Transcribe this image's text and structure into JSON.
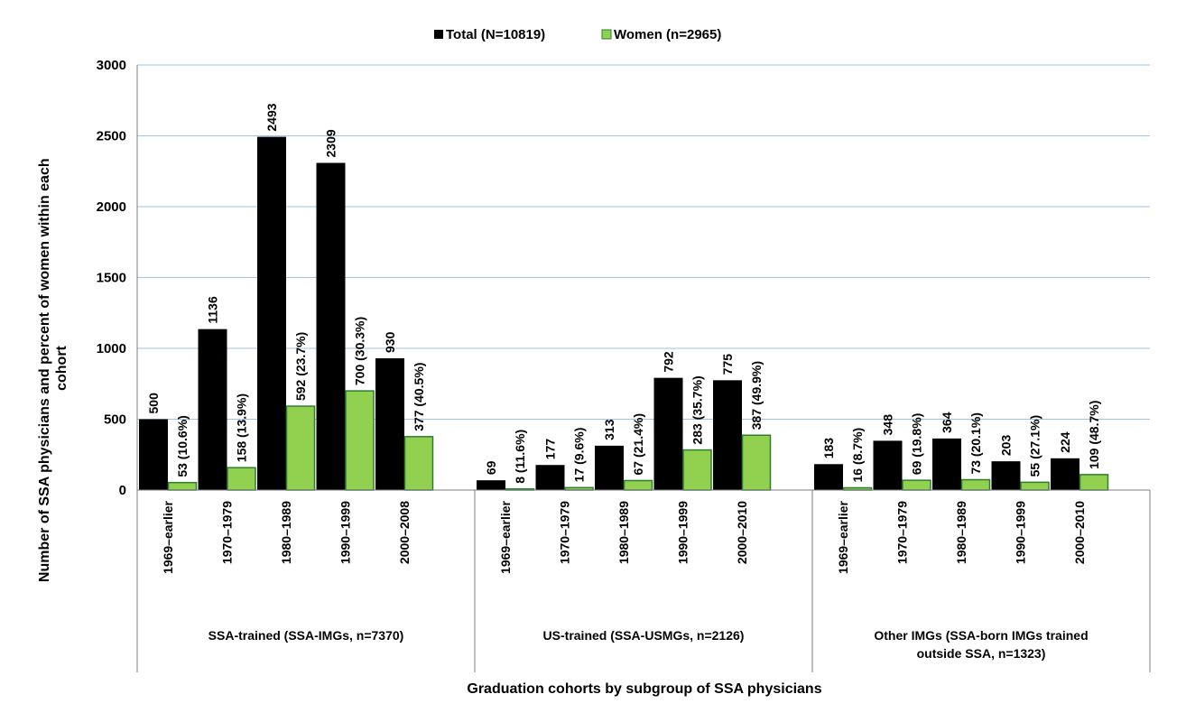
{
  "chart_data": {
    "type": "bar",
    "ylabel": "Number of SSA physicians and percent of women within each cohort",
    "ylabel_lines": [
      "Number of SSA physicians and percent of women within each",
      "cohort"
    ],
    "xlabel": "Graduation cohorts by subgroup of SSA physicians",
    "ylim": [
      0,
      3000
    ],
    "yticks": [
      "0",
      "500",
      "1000",
      "1500",
      "2000",
      "2500",
      "3000"
    ],
    "grid": true,
    "legend_position": "top-center",
    "colors": {
      "total": "#000000",
      "women": "#92d050",
      "women_edge": "#2e7d32",
      "grid": "#9dc3e6",
      "axis": "#7f7f7f"
    },
    "series": [
      {
        "name": "Total (N=10819)",
        "key": "total"
      },
      {
        "name": "Women (n=2965)",
        "key": "women"
      }
    ],
    "groups": [
      {
        "label": "SSA-trained (SSA-IMGs, n=7370)",
        "label_lines": [
          "SSA-trained (SSA-IMGs, n=7370)"
        ],
        "cohorts": [
          {
            "label": "1969–earlier",
            "total": 500,
            "total_label": "500",
            "women": 53,
            "women_label": "53 (10.6%)"
          },
          {
            "label": "1970–1979",
            "total": 1136,
            "total_label": "1136",
            "women": 158,
            "women_label": "158 (13.9%)"
          },
          {
            "label": "1980–1989",
            "total": 2493,
            "total_label": "2493",
            "women": 592,
            "women_label": "592 (23.7%)"
          },
          {
            "label": "1990–1999",
            "total": 2309,
            "total_label": "2309",
            "women": 700,
            "women_label": "700 (30.3%)"
          },
          {
            "label": "2000–2008",
            "total": 930,
            "total_label": "930",
            "women": 377,
            "women_label": "377 (40.5%)"
          }
        ]
      },
      {
        "label": "US-trained (SSA-USMGs, n=2126)",
        "label_lines": [
          "US-trained (SSA-USMGs, n=2126)"
        ],
        "cohorts": [
          {
            "label": "1969–earlier",
            "total": 69,
            "total_label": "69",
            "women": 8,
            "women_label": "8 (11.6%)"
          },
          {
            "label": "1970–1979",
            "total": 177,
            "total_label": "177",
            "women": 17,
            "women_label": "17 (9.6%)"
          },
          {
            "label": "1980–1989",
            "total": 313,
            "total_label": "313",
            "women": 67,
            "women_label": "67 (21.4%)"
          },
          {
            "label": "1990–1999",
            "total": 792,
            "total_label": "792",
            "women": 283,
            "women_label": "283 (35.7%)"
          },
          {
            "label": "2000–2010",
            "total": 775,
            "total_label": "775",
            "women": 387,
            "women_label": "387 (49.9%)"
          }
        ]
      },
      {
        "label": "Other IMGs (SSA-born IMGs trained outside SSA, n=1323)",
        "label_lines": [
          "Other IMGs (SSA-born IMGs trained",
          "outside SSA, n=1323)"
        ],
        "cohorts": [
          {
            "label": "1969–earlier",
            "total": 183,
            "total_label": "183",
            "women": 16,
            "women_label": "16 (8.7%)"
          },
          {
            "label": "1970–1979",
            "total": 348,
            "total_label": "348",
            "women": 69,
            "women_label": "69 (19.8%)"
          },
          {
            "label": "1980–1989",
            "total": 364,
            "total_label": "364",
            "women": 73,
            "women_label": "73 (20.1%)"
          },
          {
            "label": "1990–1999",
            "total": 203,
            "total_label": "203",
            "women": 55,
            "women_label": "55 (27.1%)"
          },
          {
            "label": "2000–2010",
            "total": 224,
            "total_label": "224",
            "women": 109,
            "women_label": "109 (48.7%)"
          }
        ]
      }
    ]
  }
}
